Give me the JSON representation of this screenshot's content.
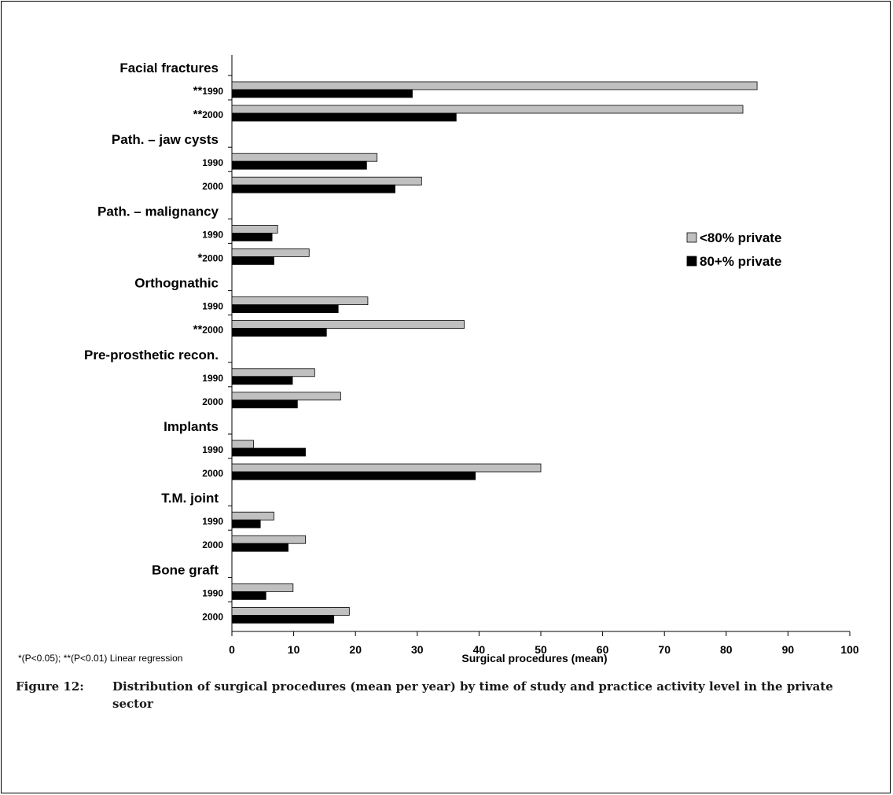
{
  "chart_data": {
    "type": "bar",
    "orientation": "horizontal",
    "xlabel": "Surgical procedures (mean)",
    "xlim": [
      0,
      100
    ],
    "xticks": [
      0,
      10,
      20,
      30,
      40,
      50,
      60,
      70,
      80,
      90,
      100
    ],
    "grid": false,
    "legend_position": "right",
    "series": [
      {
        "name": "<80% private",
        "color": "#c0c0c0"
      },
      {
        "name": "80+% private",
        "color": "#000000"
      }
    ],
    "groups": [
      {
        "category": "Facial fractures",
        "rows": [
          {
            "year": "1990",
            "sig": "**",
            "values": [
              85,
              29.2
            ]
          },
          {
            "year": "2000",
            "sig": "**",
            "values": [
              82.7,
              36.3
            ]
          }
        ]
      },
      {
        "category": "Path. – jaw cysts",
        "rows": [
          {
            "year": "1990",
            "sig": "",
            "values": [
              23.5,
              21.8
            ]
          },
          {
            "year": "2000",
            "sig": "",
            "values": [
              30.7,
              26.4
            ]
          }
        ]
      },
      {
        "category": "Path. –  malignancy",
        "rows": [
          {
            "year": "1990",
            "sig": "",
            "values": [
              7.4,
              6.5
            ]
          },
          {
            "year": "2000",
            "sig": "*",
            "values": [
              12.5,
              6.8
            ]
          }
        ]
      },
      {
        "category": "Orthognathic",
        "rows": [
          {
            "year": "1990",
            "sig": "",
            "values": [
              22,
              17.2
            ]
          },
          {
            "year": "2000",
            "sig": "**",
            "values": [
              37.6,
              15.3
            ]
          }
        ]
      },
      {
        "category": "Pre-prosthetic recon.",
        "rows": [
          {
            "year": "1990",
            "sig": "",
            "values": [
              13.4,
              9.8
            ]
          },
          {
            "year": "2000",
            "sig": "",
            "values": [
              17.6,
              10.6
            ]
          }
        ]
      },
      {
        "category": "Implants",
        "rows": [
          {
            "year": "1990",
            "sig": "",
            "values": [
              3.5,
              11.9
            ]
          },
          {
            "year": "2000",
            "sig": "",
            "values": [
              50,
              39.4
            ]
          }
        ]
      },
      {
        "category": "T.M. joint",
        "rows": [
          {
            "year": "1990",
            "sig": "",
            "values": [
              6.8,
              4.6
            ]
          },
          {
            "year": "2000",
            "sig": "",
            "values": [
              11.9,
              9.1
            ]
          }
        ]
      },
      {
        "category": "Bone graft",
        "rows": [
          {
            "year": "1990",
            "sig": "",
            "values": [
              9.9,
              5.5
            ]
          },
          {
            "year": "2000",
            "sig": "",
            "values": [
              19,
              16.5
            ]
          }
        ]
      }
    ],
    "footnote": "*(P<0.05); **(P<0.01) Linear regression"
  },
  "caption": {
    "label": "Figure 12:",
    "text": "Distribution of surgical procedures (mean per year) by time of study and practice activity level in the private sector"
  }
}
